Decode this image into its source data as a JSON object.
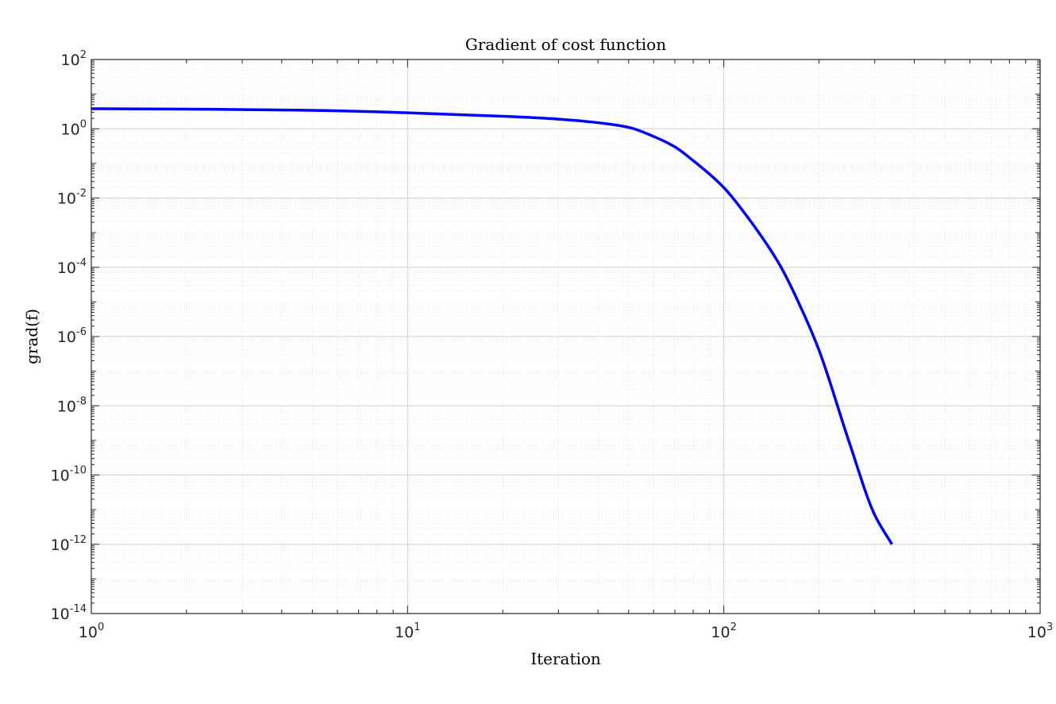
{
  "chart_data": {
    "type": "line",
    "title": "Gradient of cost function",
    "xlabel": "Iteration",
    "ylabel": "grad(f)",
    "x_scale": "log",
    "y_scale": "log",
    "xlim": [
      1,
      1000
    ],
    "ylim": [
      1e-14,
      100
    ],
    "grid": true,
    "minor_grid": true,
    "x_ticks": [
      {
        "base": "10",
        "exp": "0",
        "value": 1
      },
      {
        "base": "10",
        "exp": "1",
        "value": 10
      },
      {
        "base": "10",
        "exp": "2",
        "value": 100
      },
      {
        "base": "10",
        "exp": "3",
        "value": 1000
      }
    ],
    "y_ticks": [
      {
        "base": "10",
        "exp": "2",
        "value": 100.0
      },
      {
        "base": "10",
        "exp": "0",
        "value": 1.0
      },
      {
        "base": "10",
        "exp": "-2",
        "value": 0.01
      },
      {
        "base": "10",
        "exp": "-4",
        "value": 0.0001
      },
      {
        "base": "10",
        "exp": "-6",
        "value": 1e-06
      },
      {
        "base": "10",
        "exp": "-8",
        "value": 1e-08
      },
      {
        "base": "10",
        "exp": "-10",
        "value": 1e-10
      },
      {
        "base": "10",
        "exp": "-12",
        "value": 1e-12
      },
      {
        "base": "10",
        "exp": "-14",
        "value": 1e-14
      }
    ],
    "series": [
      {
        "color": "#0000ff",
        "points": [
          [
            1,
            3.8
          ],
          [
            2,
            3.7
          ],
          [
            5,
            3.4
          ],
          [
            10,
            2.9
          ],
          [
            20,
            2.3
          ],
          [
            30,
            1.9
          ],
          [
            40,
            1.5
          ],
          [
            50,
            1.1
          ],
          [
            60,
            0.6
          ],
          [
            70,
            0.3
          ],
          [
            80,
            0.12
          ],
          [
            100,
            0.02
          ],
          [
            120,
            0.0025
          ],
          [
            150,
            0.00012
          ],
          [
            180,
            4e-06
          ],
          [
            200,
            4e-07
          ],
          [
            250,
            8e-10
          ],
          [
            300,
            7e-12
          ],
          [
            340,
            1e-12
          ]
        ]
      }
    ]
  }
}
